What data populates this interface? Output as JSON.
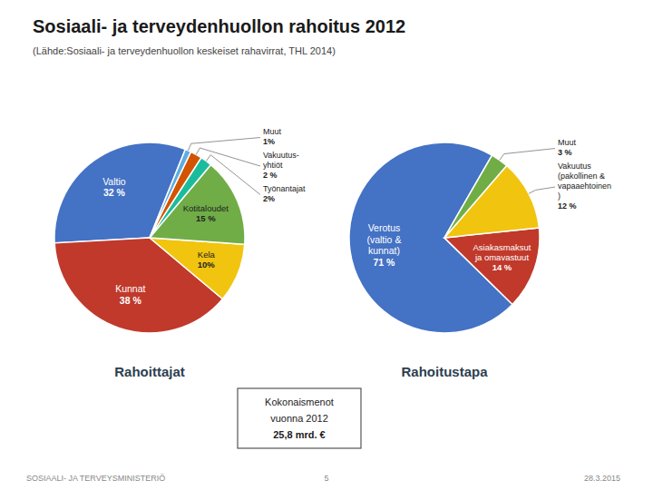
{
  "title": "Sosiaali- ja terveydenhuollon rahoitus 2012",
  "subtitle": "(Lähde:Sosiaali- ja terveydenhuollon keskeiset rahavirrat, THL 2014)",
  "annotations": [
    "Kokonaismenot",
    "vuonna 2012",
    "25,8 mrd. €",
    "SOSIAALI- JA TERVEYSMINISTERIÖ",
    "5",
    "28.3.2015"
  ],
  "chart_data": [
    {
      "type": "pie",
      "title": "Rahoittajat",
      "categories": [
        "Valtio",
        "Kunnat",
        "Kela",
        "Kotitaloudet",
        "Työnantajat",
        "Vakuutus-\nyhtiöt",
        "Muut"
      ],
      "values": [
        32,
        38,
        10,
        15,
        2,
        2,
        1
      ],
      "value_labels": [
        "32 %",
        "38 %",
        "10%",
        "15 %",
        "2%",
        "2 %",
        "1%"
      ],
      "colors": [
        "#4472C4",
        "#C0392B",
        "#F1C40F",
        "#70AD47",
        "#1ABC9C",
        "#D35400",
        "#5DADE2"
      ],
      "data_labels": true
    },
    {
      "type": "pie",
      "title": "Rahoitustapa",
      "categories": [
        "Verotus\n(valtio &\nkunnat)",
        "Asiakasmaksut\nja omavastuut",
        "Vakuutus\n(pakollinen &\nvapaaehtoinen\n)",
        "Muut"
      ],
      "values": [
        71,
        14,
        12,
        3
      ],
      "value_labels": [
        "71 %",
        "14 %",
        "12 %",
        "3 %"
      ],
      "colors": [
        "#4472C4",
        "#C0392B",
        "#F1C40F",
        "#70AD47"
      ],
      "data_labels": true
    }
  ]
}
